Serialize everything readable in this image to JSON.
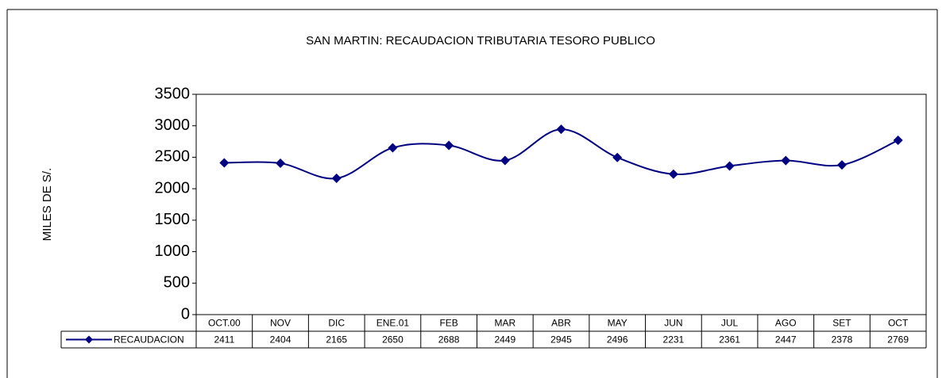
{
  "chart_data": {
    "type": "line",
    "title": "SAN MARTIN: RECAUDACION TRIBUTARIA TESORO PUBLICO",
    "y_label": "MILES DE S/.",
    "categories": [
      "OCT.00",
      "NOV",
      "DIC",
      "ENE.01",
      "FEB",
      "MAR",
      "ABR",
      "MAY",
      "JUN",
      "JUL",
      "AGO",
      "SET",
      "OCT"
    ],
    "series": [
      {
        "name": "RECAUDACION",
        "color": "#000080",
        "values": [
          2411,
          2404,
          2165,
          2650,
          2688,
          2449,
          2945,
          2496,
          2231,
          2361,
          2447,
          2378,
          2769
        ]
      }
    ],
    "ylim": [
      0,
      3500
    ],
    "yticks": [
      0,
      500,
      1000,
      1500,
      2000,
      2500,
      3000,
      3500
    ],
    "grid": false,
    "smooth": true
  }
}
